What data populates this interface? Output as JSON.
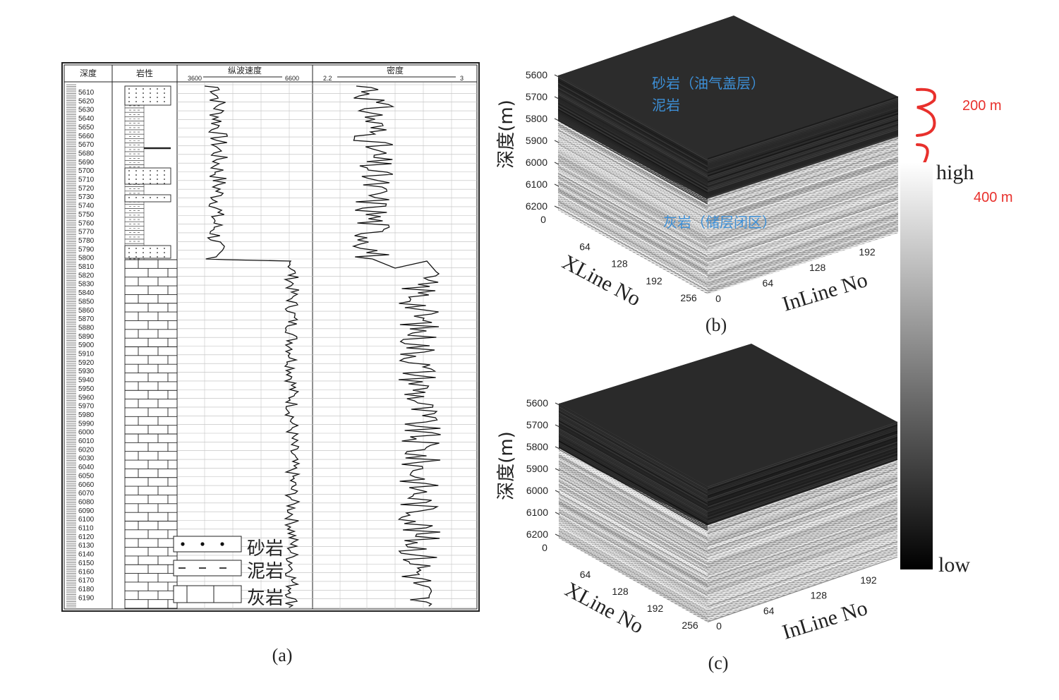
{
  "panel_a": {
    "caption": "(a)",
    "headers": {
      "depth": "深度",
      "lithology": "岩性",
      "velocity": "纵波速度",
      "velocity_min": "3600",
      "velocity_max": "6600",
      "density": "密度",
      "density_min": "2.2",
      "density_max": "3"
    },
    "depth_ticks": [
      "5610",
      "5620",
      "5630",
      "5640",
      "5650",
      "5660",
      "5670",
      "5680",
      "5690",
      "5700",
      "5710",
      "5720",
      "5730",
      "5740",
      "5750",
      "5760",
      "5770",
      "5780",
      "5790",
      "5800",
      "5810",
      "5820",
      "5830",
      "5840",
      "5850",
      "5860",
      "5870",
      "5880",
      "5890",
      "5900",
      "5910",
      "5920",
      "5930",
      "5940",
      "5950",
      "5960",
      "5970",
      "5980",
      "5990",
      "6000",
      "6010",
      "6020",
      "6030",
      "6040",
      "6050",
      "6060",
      "6070",
      "6080",
      "6090",
      "6100",
      "6110",
      "6120",
      "6130",
      "6140",
      "6150",
      "6160",
      "6170",
      "6180",
      "6190"
    ],
    "legend": [
      {
        "key": "sand",
        "label": "砂岩"
      },
      {
        "key": "mud",
        "label": "泥岩"
      },
      {
        "key": "lime",
        "label": "灰岩"
      }
    ]
  },
  "panel_b": {
    "caption": "(b)",
    "depth_axis_label": "深度(m)",
    "depth_ticks": [
      "5600",
      "5700",
      "5800",
      "5900",
      "6000",
      "6100",
      "6200"
    ],
    "xline_label": "XLine No",
    "xline_ticks": [
      "0",
      "64",
      "128",
      "192",
      "256"
    ],
    "inline_label": "InLine No",
    "inline_ticks": [
      "0",
      "64",
      "128",
      "192"
    ],
    "annotation_top_1": "砂岩（油气盖层）",
    "annotation_top_2": "泥岩",
    "annotation_bottom": "灰岩（储层闭区）",
    "brace_upper": "200 m",
    "brace_lower": "400 m"
  },
  "panel_c": {
    "caption": "(c)",
    "depth_axis_label": "深度(m)",
    "depth_ticks": [
      "5600",
      "5700",
      "5800",
      "5900",
      "6000",
      "6100",
      "6200"
    ],
    "xline_label": "XLine No",
    "xline_ticks": [
      "0",
      "64",
      "128",
      "192",
      "256"
    ],
    "inline_label": "InLine No",
    "inline_ticks": [
      "0",
      "64",
      "128",
      "192"
    ]
  },
  "colorbar": {
    "high_label": "high",
    "low_label": "low"
  },
  "colors": {
    "annotation_blue": "#3d8fd6",
    "brace_red": "#e8302c",
    "top_face": "#2a2a2a"
  }
}
